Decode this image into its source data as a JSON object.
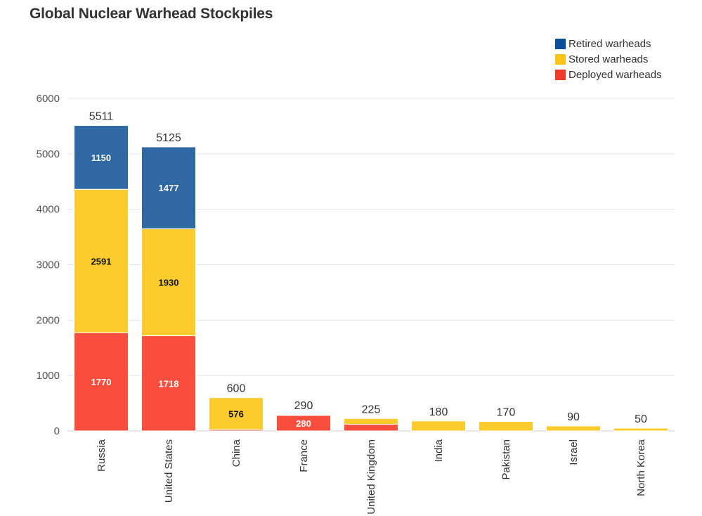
{
  "title": "Global Nuclear Warhead Stockpiles",
  "colors": {
    "retired": "#2f68a3",
    "stored": "#fccb2e",
    "deployed": "#f94e3d",
    "legend_retired": "#0a4f99",
    "legend_stored": "#fcc419",
    "legend_deployed": "#f03a2a"
  },
  "legend": [
    {
      "label": "Retired warheads",
      "color_key": "legend_retired"
    },
    {
      "label": "Stored warheads",
      "color_key": "legend_stored"
    },
    {
      "label": "Deployed warheads",
      "color_key": "legend_deployed"
    }
  ],
  "chart_data": {
    "type": "bar",
    "stacked": true,
    "title": "Global Nuclear Warhead Stockpiles",
    "xlabel": "",
    "ylabel": "",
    "ylim": [
      0,
      6000
    ],
    "yticks": [
      0,
      1000,
      2000,
      3000,
      4000,
      5000,
      6000
    ],
    "grid": true,
    "legend_position": "top-right",
    "categories": [
      "Russia",
      "United States",
      "China",
      "France",
      "United Kingdom",
      "India",
      "Pakistan",
      "Israel",
      "North Korea"
    ],
    "series": [
      {
        "name": "Deployed warheads",
        "color_key": "deployed",
        "values": [
          1770,
          1718,
          24,
          280,
          120,
          0,
          0,
          0,
          0
        ],
        "labels": [
          "1770",
          "1718",
          "",
          "280",
          "",
          "",
          "",
          "",
          ""
        ]
      },
      {
        "name": "Stored warheads",
        "color_key": "stored",
        "values": [
          2591,
          1930,
          576,
          10,
          105,
          180,
          170,
          90,
          50
        ],
        "labels": [
          "2591",
          "1930",
          "576",
          "",
          "",
          "",
          "",
          "",
          ""
        ]
      },
      {
        "name": "Retired warheads",
        "color_key": "retired",
        "values": [
          1150,
          1477,
          0,
          0,
          0,
          0,
          0,
          0,
          0
        ],
        "labels": [
          "1150",
          "1477",
          "",
          "",
          "",
          "",
          "",
          "",
          ""
        ]
      }
    ],
    "totals": [
      5511,
      5125,
      600,
      290,
      225,
      180,
      170,
      90,
      50
    ]
  }
}
